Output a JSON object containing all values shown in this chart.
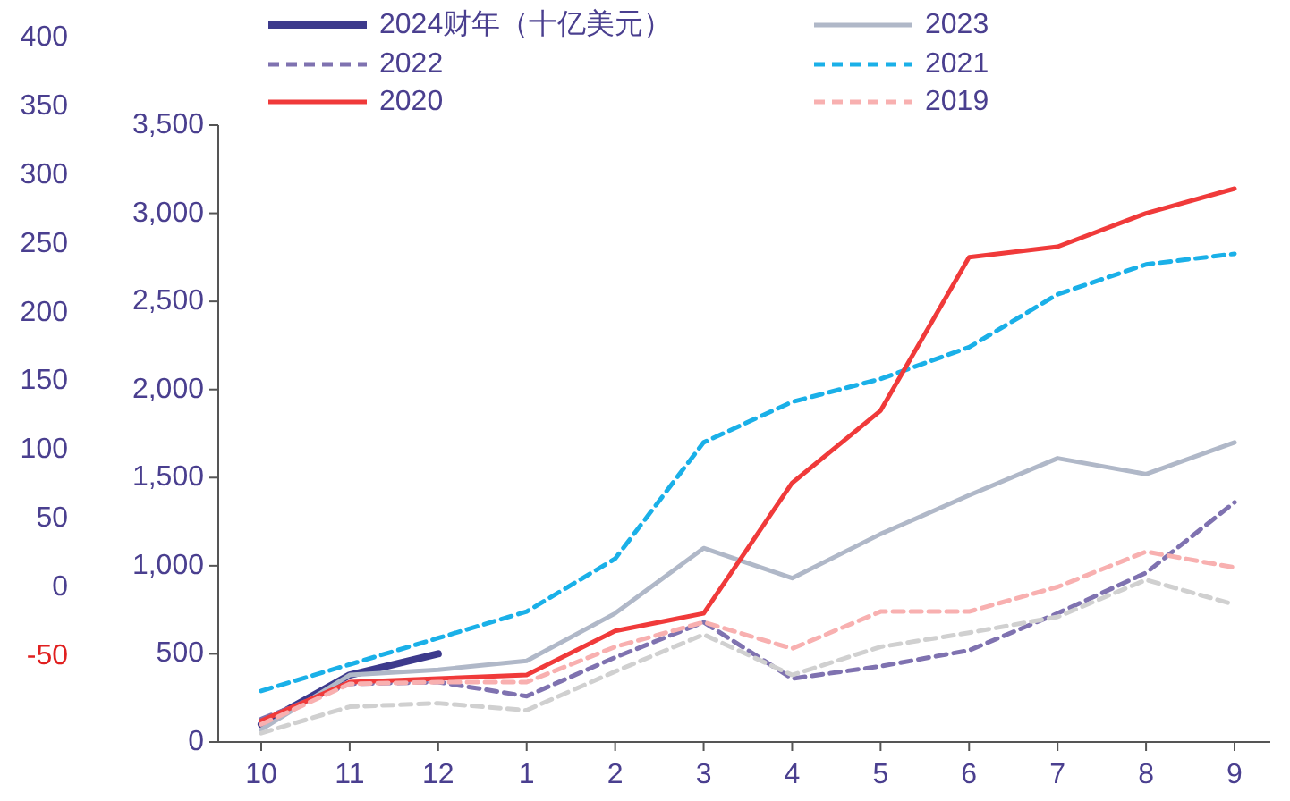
{
  "chart_data": {
    "type": "line",
    "categories": [
      "10",
      "11",
      "12",
      "1",
      "2",
      "3",
      "4",
      "5",
      "6",
      "7",
      "8",
      "9"
    ],
    "ylim": [
      0,
      3500
    ],
    "yticks": [
      0,
      {
        "value": 500,
        "label": "500"
      },
      {
        "value": 1000,
        "label": "1,000"
      },
      {
        "value": 1500,
        "label": "1,500"
      },
      {
        "value": 2000,
        "label": "2,000"
      },
      {
        "value": 2500,
        "label": "2,500"
      },
      {
        "value": 3000,
        "label": "3,000"
      },
      {
        "value": 3500,
        "label": "3,500"
      }
    ],
    "y2lim": [
      -50,
      400
    ],
    "y2ticks": [
      -50,
      0,
      50,
      100,
      150,
      200,
      250,
      300,
      350,
      400
    ],
    "legend": "top",
    "grid": false,
    "series": [
      {
        "name": "2024财年（十亿美元）",
        "color": "#3d3a8c",
        "line_style": "solid",
        "values": [
          100,
          380,
          500,
          null,
          null,
          null,
          null,
          null,
          null,
          null,
          null,
          null
        ]
      },
      {
        "name": "2023",
        "color": "#b0b8c8",
        "line_style": "solid",
        "values": [
          70,
          380,
          410,
          460,
          730,
          1100,
          930,
          1180,
          1400,
          1610,
          1520,
          1700
        ]
      },
      {
        "name": "2022",
        "color": "#7f72b0",
        "line_style": "dashed",
        "values": [
          130,
          330,
          340,
          260,
          480,
          680,
          360,
          430,
          520,
          730,
          960,
          1360
        ]
      },
      {
        "name": "2021",
        "color": "#1ab0e8",
        "line_style": "dashed",
        "values": [
          290,
          440,
          590,
          740,
          1040,
          1700,
          1930,
          2060,
          2240,
          2540,
          2710,
          2770
        ]
      },
      {
        "name": "2020",
        "color": "#f03a3a",
        "line_style": "solid",
        "values": [
          120,
          340,
          360,
          380,
          630,
          730,
          1470,
          1880,
          2750,
          2810,
          3000,
          3140
        ]
      },
      {
        "name": "2019",
        "color": "#f8b0b0",
        "line_style": "dashed",
        "values": [
          100,
          330,
          340,
          340,
          540,
          680,
          530,
          740,
          740,
          880,
          1080,
          990
        ]
      },
      {
        "color": "#d0d0d0",
        "line_style": "dashed",
        "values": [
          50,
          200,
          220,
          180,
          400,
          610,
          380,
          540,
          620,
          710,
          920,
          780
        ]
      }
    ]
  }
}
